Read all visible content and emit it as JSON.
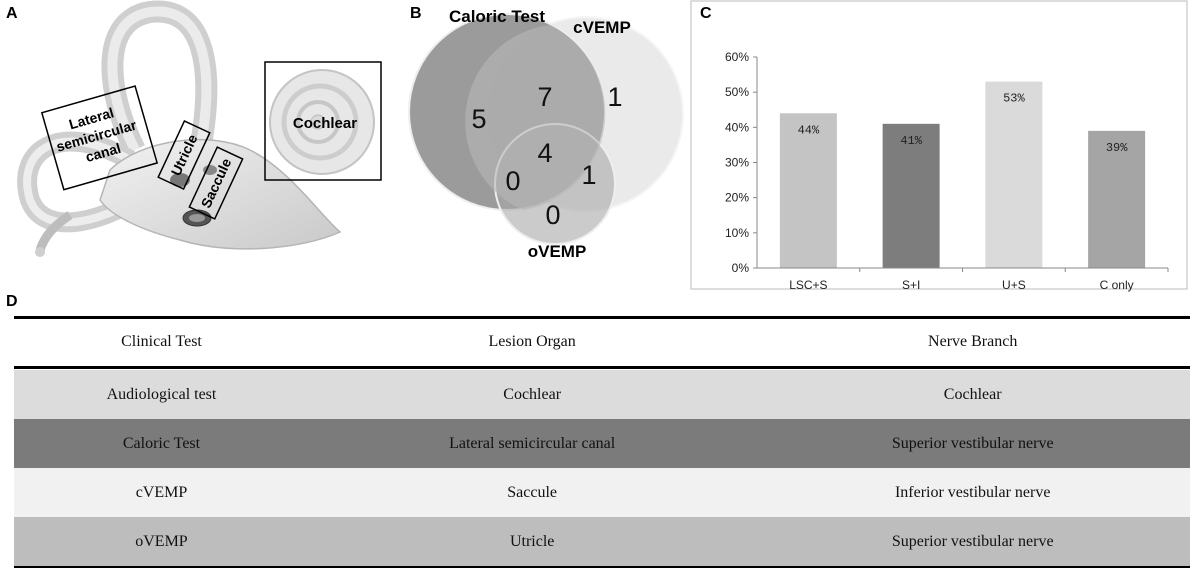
{
  "panels": {
    "a": "A",
    "b": "B",
    "c": "C",
    "d": "D"
  },
  "ear": {
    "lateral": [
      "Lateral",
      "semicircular",
      "canal"
    ],
    "utricle": "Utricle",
    "saccule": "Saccule",
    "cochlear": "Cochlear"
  },
  "venn": {
    "set_caloric": "Caloric Test",
    "set_cvemp": "cVEMP",
    "set_ovemp": "oVEMP",
    "caloric_only": "5",
    "caloric_cvemp": "7",
    "cvemp_only": "1",
    "all_three": "4",
    "caloric_ovemp": "0",
    "cvemp_ovemp": "1",
    "ovemp_only": "0"
  },
  "chart_data": {
    "type": "bar",
    "categories": [
      "LSC+S",
      "S+I",
      "U+S",
      "C only"
    ],
    "values": [
      44,
      41,
      53,
      39
    ],
    "value_labels": [
      "44%",
      "41%",
      "53%",
      "39%"
    ],
    "colors": [
      "#c4c4c4",
      "#7d7d7d",
      "#dadada",
      "#a5a5a5"
    ],
    "ylim": [
      0,
      60
    ],
    "yticks": [
      "0%",
      "10%",
      "20%",
      "30%",
      "40%",
      "50%",
      "60%"
    ],
    "grid": false,
    "title": "",
    "xlabel": "",
    "ylabel": ""
  },
  "table": {
    "headers": [
      "Clinical Test",
      "Lesion Organ",
      "Nerve Branch"
    ],
    "rows": [
      {
        "cells": [
          "Audiological test",
          "Cochlear",
          "Cochlear"
        ],
        "bg": "#dcdcdc"
      },
      {
        "cells": [
          "Caloric Test",
          "Lateral semicircular canal",
          "Superior vestibular nerve"
        ],
        "bg": "#7b7b7b"
      },
      {
        "cells": [
          "cVEMP",
          "Saccule",
          "Inferior  vestibular nerve"
        ],
        "bg": "#f1f1f1"
      },
      {
        "cells": [
          "oVEMP",
          "Utricle",
          "Superior vestibular nerve"
        ],
        "bg": "#bdbdbd"
      }
    ]
  }
}
